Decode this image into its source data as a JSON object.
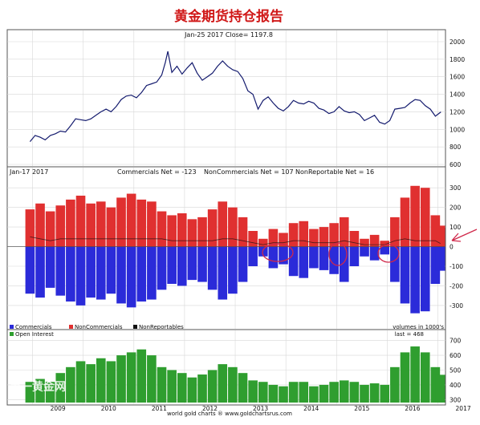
{
  "page_title": "黄金期货持仓报告",
  "watermark": "第一黄金网",
  "footer": "world gold charts  ®  www.goldchartsrus.com",
  "colors": {
    "title": "#d01818",
    "price_line": "#141b6e",
    "commercials": "#2b2bd9",
    "noncommercials": "#e03030",
    "nonreportables": "#111111",
    "open_interest": "#2f9e2f",
    "annotation": "#d0284a",
    "grid": "#d8d8d8"
  },
  "chart_data": [
    {
      "type": "line",
      "panel": "price",
      "title": "Jan-25  2017   Close= 1197.8",
      "x_ticks": [
        "2009",
        "2010",
        "2011",
        "2012",
        "2013",
        "2014",
        "2015",
        "2016",
        "2017"
      ],
      "y_ticks": [
        600,
        800,
        1000,
        1200,
        1400,
        1600,
        1800,
        2000
      ],
      "ylim": [
        600,
        2000
      ],
      "grid": true,
      "series": [
        {
          "x": [
            2008.95,
            2009.05,
            2009.15,
            2009.25,
            2009.35,
            2009.45,
            2009.55,
            2009.65,
            2009.75,
            2009.85,
            2009.95,
            2010.05,
            2010.15,
            2010.25,
            2010.35,
            2010.45,
            2010.55,
            2010.65,
            2010.75,
            2010.85,
            2010.95,
            2011.05,
            2011.15,
            2011.25,
            2011.35,
            2011.45,
            2011.55,
            2011.62,
            2011.67,
            2011.75,
            2011.85,
            2011.95,
            2012.05,
            2012.15,
            2012.25,
            2012.35,
            2012.45,
            2012.55,
            2012.65,
            2012.75,
            2012.85,
            2012.95,
            2013.05,
            2013.15,
            2013.25,
            2013.35,
            2013.45,
            2013.55,
            2013.65,
            2013.75,
            2013.85,
            2013.95,
            2014.05,
            2014.15,
            2014.25,
            2014.35,
            2014.45,
            2014.55,
            2014.65,
            2014.75,
            2014.85,
            2014.95,
            2015.05,
            2015.15,
            2015.25,
            2015.35,
            2015.45,
            2015.55,
            2015.65,
            2015.75,
            2015.85,
            2015.95,
            2016.05,
            2016.15,
            2016.25,
            2016.35,
            2016.45,
            2016.55,
            2016.65,
            2016.75,
            2016.85,
            2016.95,
            2017.06
          ],
          "y": [
            860,
            930,
            910,
            880,
            930,
            950,
            980,
            970,
            1040,
            1120,
            1110,
            1100,
            1120,
            1160,
            1200,
            1230,
            1200,
            1260,
            1340,
            1380,
            1390,
            1360,
            1420,
            1500,
            1520,
            1540,
            1620,
            1760,
            1890,
            1650,
            1720,
            1630,
            1700,
            1760,
            1640,
            1560,
            1600,
            1640,
            1720,
            1780,
            1720,
            1680,
            1660,
            1580,
            1440,
            1400,
            1230,
            1330,
            1370,
            1300,
            1240,
            1210,
            1260,
            1330,
            1300,
            1290,
            1320,
            1300,
            1240,
            1220,
            1180,
            1200,
            1260,
            1210,
            1190,
            1200,
            1170,
            1100,
            1130,
            1160,
            1080,
            1060,
            1100,
            1230,
            1240,
            1250,
            1300,
            1340,
            1330,
            1270,
            1230,
            1150,
            1198
          ]
        }
      ]
    },
    {
      "type": "bar",
      "panel": "cot",
      "title": "Jan-17  2017",
      "annotations": [
        "Commercials Net = -123",
        "NonCommercials Net = 107",
        "NonReportable Net = 16"
      ],
      "legend": [
        "Commercials",
        "NonCommercials",
        "NonReportables"
      ],
      "legend_placement": "bottom-left",
      "note": "volumes in 1000's",
      "y_ticks": [
        -300,
        -200,
        -100,
        0,
        100,
        200,
        300
      ],
      "ylim": [
        -370,
        350
      ],
      "grid": true,
      "x": [
        2008.95,
        2009.15,
        2009.35,
        2009.55,
        2009.75,
        2009.95,
        2010.15,
        2010.35,
        2010.55,
        2010.75,
        2010.95,
        2011.15,
        2011.35,
        2011.55,
        2011.75,
        2011.95,
        2012.15,
        2012.35,
        2012.55,
        2012.75,
        2012.95,
        2013.15,
        2013.35,
        2013.55,
        2013.75,
        2013.95,
        2014.15,
        2014.35,
        2014.55,
        2014.75,
        2014.95,
        2015.15,
        2015.35,
        2015.55,
        2015.75,
        2015.95,
        2016.15,
        2016.35,
        2016.55,
        2016.75,
        2016.95,
        2017.05
      ],
      "series": [
        {
          "name": "NonCommercials",
          "values": [
            190,
            220,
            180,
            210,
            240,
            260,
            220,
            230,
            200,
            250,
            270,
            240,
            230,
            180,
            160,
            170,
            140,
            150,
            190,
            230,
            200,
            150,
            80,
            40,
            90,
            70,
            120,
            130,
            90,
            100,
            120,
            150,
            80,
            40,
            60,
            30,
            150,
            250,
            310,
            300,
            160,
            107
          ]
        },
        {
          "name": "Commercials",
          "values": [
            -240,
            -260,
            -210,
            -250,
            -280,
            -300,
            -260,
            -270,
            -240,
            -290,
            -310,
            -280,
            -270,
            -220,
            -190,
            -200,
            -170,
            -180,
            -220,
            -270,
            -240,
            -180,
            -100,
            -50,
            -110,
            -90,
            -150,
            -160,
            -110,
            -120,
            -140,
            -180,
            -100,
            -50,
            -70,
            -40,
            -180,
            -290,
            -340,
            -330,
            -190,
            -123
          ]
        },
        {
          "name": "NonReportables",
          "values": [
            50,
            40,
            30,
            40,
            40,
            40,
            40,
            40,
            40,
            40,
            40,
            40,
            40,
            40,
            30,
            30,
            30,
            30,
            30,
            40,
            40,
            30,
            20,
            10,
            20,
            20,
            30,
            30,
            20,
            20,
            20,
            30,
            20,
            10,
            10,
            10,
            30,
            40,
            30,
            30,
            30,
            16
          ]
        }
      ]
    },
    {
      "type": "bar",
      "panel": "open_interest",
      "legend": [
        "Open Interest"
      ],
      "annotation": "last = 468",
      "y_ticks": [
        300,
        400,
        500,
        600,
        700
      ],
      "ylim": [
        280,
        720
      ],
      "grid": true,
      "x": [
        2008.95,
        2009.15,
        2009.35,
        2009.55,
        2009.75,
        2009.95,
        2010.15,
        2010.35,
        2010.55,
        2010.75,
        2010.95,
        2011.15,
        2011.35,
        2011.55,
        2011.75,
        2011.95,
        2012.15,
        2012.35,
        2012.55,
        2012.75,
        2012.95,
        2013.15,
        2013.35,
        2013.55,
        2013.75,
        2013.95,
        2014.15,
        2014.35,
        2014.55,
        2014.75,
        2014.95,
        2015.15,
        2015.35,
        2015.55,
        2015.75,
        2015.95,
        2016.15,
        2016.35,
        2016.55,
        2016.75,
        2016.95,
        2017.05
      ],
      "values": [
        420,
        440,
        420,
        480,
        520,
        560,
        540,
        580,
        560,
        600,
        620,
        640,
        600,
        520,
        500,
        480,
        450,
        470,
        500,
        540,
        520,
        480,
        430,
        420,
        400,
        390,
        420,
        420,
        390,
        400,
        420,
        430,
        420,
        400,
        410,
        400,
        520,
        620,
        660,
        620,
        520,
        468
      ]
    }
  ]
}
